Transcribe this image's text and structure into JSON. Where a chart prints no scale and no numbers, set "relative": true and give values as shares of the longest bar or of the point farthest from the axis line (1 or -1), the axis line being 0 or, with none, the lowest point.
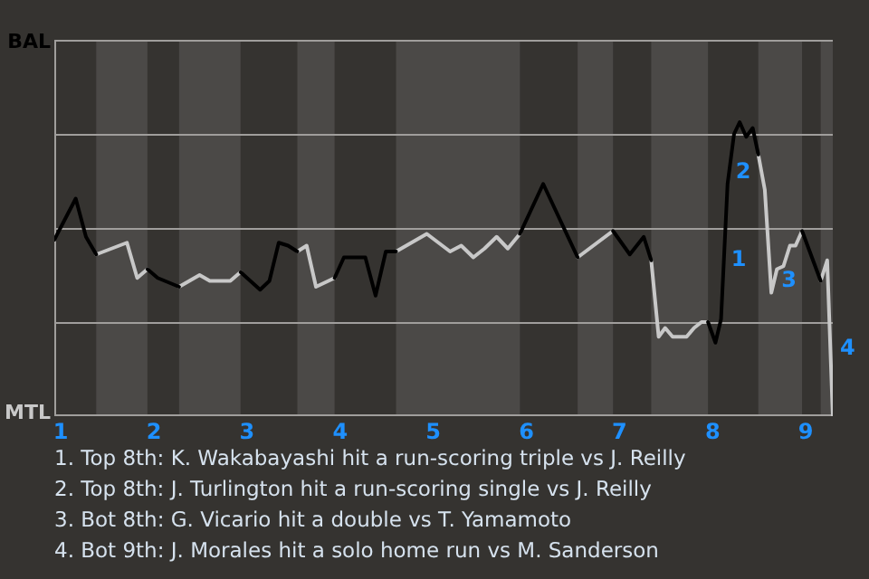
{
  "chart_data": {
    "type": "line",
    "relative": true,
    "series": [
      {
        "color": "#000000",
        "x": [
          0.93,
          1.16,
          1.27,
          1.38
        ],
        "values": [
          0.6,
          0.74,
          0.61,
          0.55
        ]
      },
      {
        "color": "#000000",
        "x": [
          1.93,
          2.04,
          2.27
        ],
        "values": [
          0.5,
          0.47,
          0.44
        ]
      },
      {
        "color": "#000000",
        "x": [
          2.93,
          3.14,
          3.24,
          3.34,
          3.44,
          3.54
        ],
        "values": [
          0.49,
          0.43,
          0.46,
          0.59,
          0.58,
          0.56
        ]
      },
      {
        "color": "#000000",
        "x": [
          3.94,
          4.04,
          4.27,
          4.38,
          4.49,
          4.6
        ],
        "values": [
          0.47,
          0.54,
          0.54,
          0.41,
          0.56,
          0.56
        ]
      },
      {
        "color": "#000000",
        "x": [
          5.93,
          6.18,
          6.55
        ],
        "values": [
          0.62,
          0.79,
          0.54
        ]
      },
      {
        "color": "#000000",
        "x": [
          6.93,
          7.11,
          7.26,
          7.34
        ],
        "values": [
          0.63,
          0.55,
          0.61,
          0.53
        ]
      },
      {
        "color": "#000000",
        "x": [
          7.95,
          8.03,
          8.09,
          8.16,
          8.23,
          8.29,
          8.36,
          8.43,
          8.49
        ],
        "values": [
          0.32,
          0.25,
          0.33,
          0.79,
          0.96,
          1,
          0.95,
          0.98,
          0.89
        ]
      },
      {
        "color": "#000000",
        "x": [
          8.96,
          9.16
        ],
        "values": [
          0.63,
          0.46
        ]
      },
      {
        "color": "#c8c8c8",
        "x": [
          1.38,
          1.71,
          1.82,
          1.93
        ],
        "values": [
          0.55,
          0.59,
          0.47,
          0.5
        ]
      },
      {
        "color": "#c8c8c8",
        "x": [
          2.27,
          2.49,
          2.6,
          2.82,
          2.93
        ],
        "values": [
          0.44,
          0.48,
          0.46,
          0.46,
          0.49
        ]
      },
      {
        "color": "#c8c8c8",
        "x": [
          3.54,
          3.64,
          3.74,
          3.94
        ],
        "values": [
          0.56,
          0.58,
          0.44,
          0.47
        ]
      },
      {
        "color": "#c8c8c8",
        "x": [
          4.6,
          4.71,
          4.93,
          5.18,
          5.3,
          5.43,
          5.55,
          5.68,
          5.8,
          5.93
        ],
        "values": [
          0.56,
          0.58,
          0.62,
          0.56,
          0.58,
          0.54,
          0.57,
          0.61,
          0.57,
          0.62
        ]
      },
      {
        "color": "#c8c8c8",
        "x": [
          6.55,
          6.93
        ],
        "values": [
          0.54,
          0.63
        ]
      },
      {
        "color": "#c8c8c8",
        "x": [
          7.34,
          7.42,
          7.49,
          7.57,
          7.72,
          7.8,
          7.88,
          7.95
        ],
        "values": [
          0.53,
          0.27,
          0.3,
          0.27,
          0.27,
          0.3,
          0.32,
          0.32
        ]
      },
      {
        "color": "#c8c8c8",
        "x": [
          8.49,
          8.56,
          8.63,
          8.69,
          8.76,
          8.83,
          8.89,
          8.96
        ],
        "values": [
          0.89,
          0.77,
          0.42,
          0.5,
          0.51,
          0.58,
          0.58,
          0.63
        ]
      },
      {
        "color": "#c8c8c8",
        "x": [
          9.16,
          9.23,
          9.29
        ],
        "values": [
          0.46,
          0.53,
          0
        ]
      }
    ],
    "bands": [
      {
        "axis": "x",
        "from": 1.38,
        "to": 1.93,
        "color": "#4b4947"
      },
      {
        "axis": "x",
        "from": 2.27,
        "to": 2.93,
        "color": "#4b4947"
      },
      {
        "axis": "x",
        "from": 3.54,
        "to": 3.94,
        "color": "#4b4947"
      },
      {
        "axis": "x",
        "from": 4.6,
        "to": 5.93,
        "color": "#4b4947"
      },
      {
        "axis": "x",
        "from": 6.55,
        "to": 6.93,
        "color": "#4b4947"
      },
      {
        "axis": "x",
        "from": 7.34,
        "to": 7.95,
        "color": "#4b4947"
      },
      {
        "axis": "x",
        "from": 8.49,
        "to": 8.96,
        "color": "#4b4947"
      },
      {
        "axis": "x",
        "from": 9.16,
        "to": 9.29,
        "color": "#4b4947"
      }
    ],
    "xlim": [
      0.93,
      9.29
    ],
    "xticks": [
      1,
      2,
      3,
      4,
      5,
      6,
      7,
      8,
      9
    ],
    "ylim": [
      0,
      1.28
    ],
    "ref_lines": [
      {
        "axis": "y",
        "value": 0.32,
        "color": "#a09e9c"
      },
      {
        "axis": "y",
        "value": 0.64,
        "color": "#a09e9c"
      },
      {
        "axis": "y",
        "value": 0.96,
        "color": "#a09e9c"
      }
    ],
    "marker": "none",
    "annotations": [
      "BAL",
      "MTL",
      {
        "text": "1",
        "x": 8.12,
        "y": 0.53
      },
      {
        "text": "2",
        "x": 8.17,
        "y": 0.83
      },
      {
        "text": "3",
        "x": 8.66,
        "y": 0.46
      },
      {
        "text": "4",
        "x": 9.29,
        "y": 0.23
      },
      "1. Top 8th: K. Wakabayashi hit a run-scoring triple vs J. Reilly",
      "2. Top 8th: J. Turlington hit a run-scoring single vs J. Reilly",
      "3. Bot 8th: G. Vicario hit a double vs T. Yamamoto",
      "4. Bot 9th: J. Morales hit a solo home run vs M. Sanderson"
    ]
  }
}
